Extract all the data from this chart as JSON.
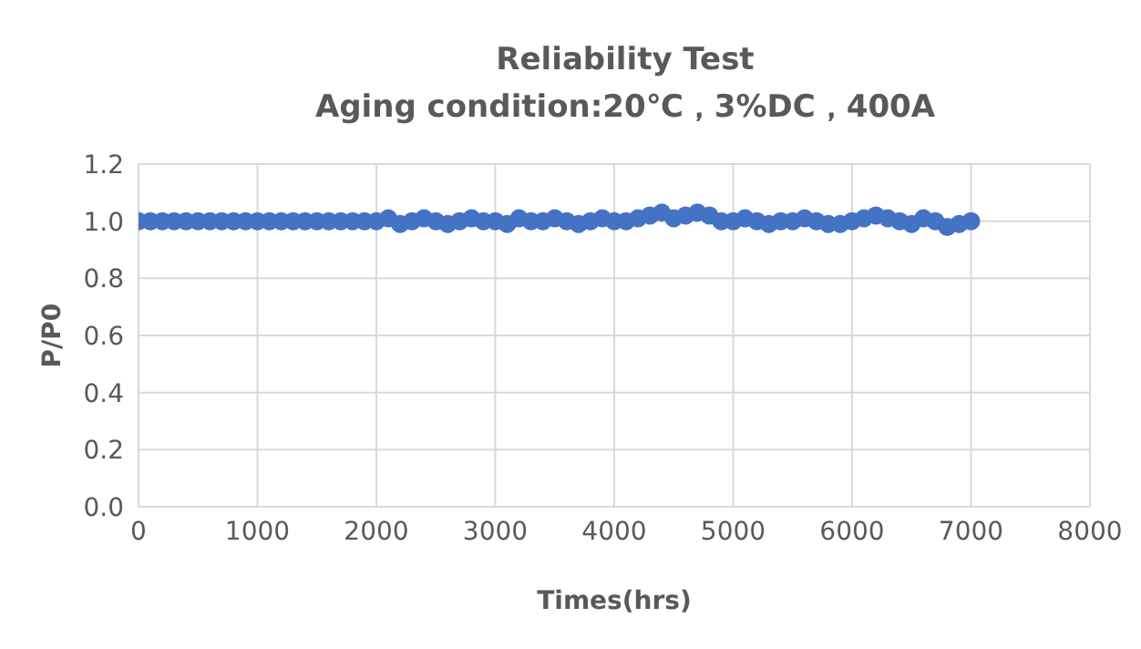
{
  "chart_data": {
    "type": "scatter",
    "title": "Reliability Test",
    "subtitle": "Aging condition:20℃，3%DC，400A",
    "xlabel": "Times(hrs)",
    "ylabel": "P/P0",
    "x": [
      0,
      100,
      200,
      300,
      400,
      500,
      600,
      700,
      800,
      900,
      1000,
      1100,
      1200,
      1300,
      1400,
      1500,
      1600,
      1700,
      1800,
      1900,
      2000,
      2100,
      2200,
      2300,
      2400,
      2500,
      2600,
      2700,
      2800,
      2900,
      3000,
      3100,
      3200,
      3300,
      3400,
      3500,
      3600,
      3700,
      3800,
      3900,
      4000,
      4100,
      4200,
      4300,
      4400,
      4500,
      4600,
      4700,
      4800,
      4900,
      5000,
      5100,
      5200,
      5300,
      5400,
      5500,
      5600,
      5700,
      5800,
      5900,
      6000,
      6100,
      6200,
      6300,
      6400,
      6500,
      6600,
      6700,
      6800,
      6900,
      7000
    ],
    "series": [
      {
        "color": "#4472c4",
        "values": [
          1.0,
          1.0,
          1.0,
          1.0,
          1.0,
          1.0,
          1.0,
          1.0,
          1.0,
          1.0,
          1.0,
          1.0,
          1.0,
          1.0,
          1.0,
          1.0,
          1.0,
          1.0,
          1.0,
          1.0,
          1.0,
          1.01,
          0.99,
          1.0,
          1.01,
          1.0,
          0.99,
          1.0,
          1.01,
          1.0,
          1.0,
          0.99,
          1.01,
          1.0,
          1.0,
          1.01,
          1.0,
          0.99,
          1.0,
          1.01,
          1.0,
          1.0,
          1.01,
          1.02,
          1.03,
          1.01,
          1.02,
          1.03,
          1.02,
          1.0,
          1.0,
          1.01,
          1.0,
          0.99,
          1.0,
          1.0,
          1.01,
          1.0,
          0.99,
          0.99,
          1.0,
          1.01,
          1.02,
          1.01,
          1.0,
          0.99,
          1.01,
          1.0,
          0.98,
          0.99,
          1.0
        ]
      }
    ],
    "xlim": [
      0,
      8000
    ],
    "xticks": [
      0,
      1000,
      2000,
      3000,
      4000,
      5000,
      6000,
      7000,
      8000
    ],
    "ylim": [
      0,
      1.2
    ],
    "yticks": [
      {
        "value": 0,
        "label": "0.0"
      },
      0.2,
      0.4,
      0.6,
      0.8,
      {
        "value": 1,
        "label": "1.0"
      },
      1.2
    ],
    "grid": true,
    "marker": "circle",
    "legend": false
  }
}
